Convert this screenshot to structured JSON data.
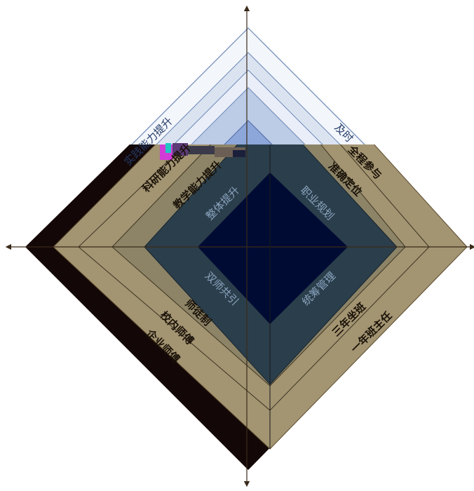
{
  "diagram": {
    "colors": {
      "outer_band": "#a39472",
      "outer_shadow": "#140707",
      "mid_band": "#8d8467",
      "inner_band": "#2b3e4b",
      "core": "#000b33",
      "upper_light_1": "#f3f6fb",
      "upper_light_2": "#dbe3f1",
      "upper_light_3": "#bccbe6",
      "upper_light_4": "#8da7da",
      "axis": "#3a2a1a"
    },
    "upper_left_labels": [
      "科研能力提升",
      "教学能力提升",
      "实践能力提升"
    ],
    "upper_right_labels": [
      "全程参与",
      "准确定位",
      "及时"
    ],
    "lower_left_labels": [
      "师徒制",
      "校内师傅",
      "企业师傅"
    ],
    "lower_right_labels": [
      "三年坐班",
      "一年班主任"
    ],
    "inner_labels": {
      "top_left": "整体提升",
      "top_right": "职业规划",
      "bottom_left": "双师共引",
      "bottom_right": "统筹管理"
    }
  }
}
